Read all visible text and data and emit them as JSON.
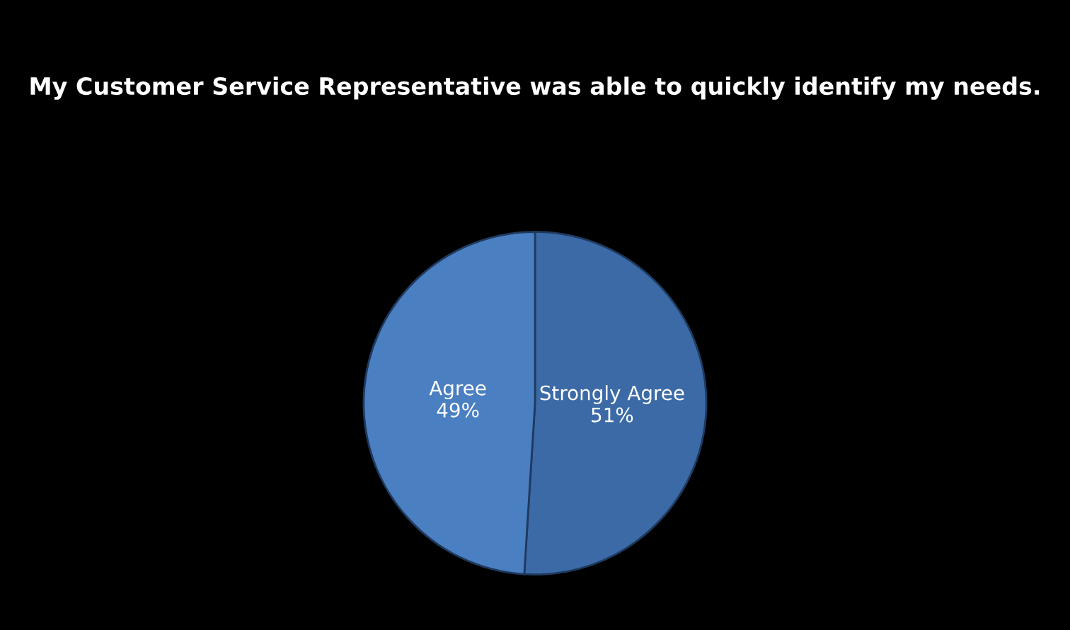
{
  "chart_data": {
    "type": "pie",
    "title": "My Customer Service Representative was able to quickly identify my needs.",
    "categories": [
      "Strongly Agree",
      "Agree"
    ],
    "values": [
      51,
      49
    ],
    "colors": [
      "#3b6aa6",
      "#4a7fc1"
    ],
    "value_labels": [
      "51%",
      "49%"
    ],
    "legend": false
  }
}
